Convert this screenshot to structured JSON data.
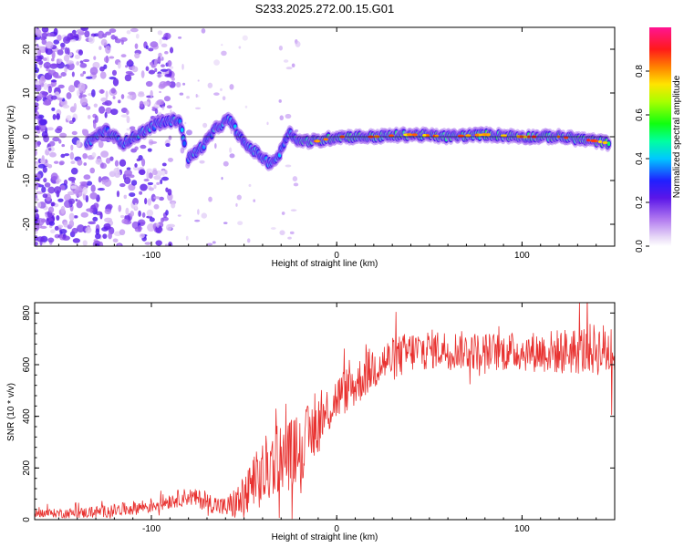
{
  "figure": {
    "title": "S233.2025.272.00.15.G01"
  },
  "chart_data": [
    {
      "type": "heatmap",
      "title": "",
      "xlabel": "Height of straight line (km)",
      "ylabel": "Frequency (Hz)",
      "xlim": [
        -163,
        150
      ],
      "ylim": [
        -25,
        25
      ],
      "xticks": [
        -100,
        0,
        100
      ],
      "xtick_labels": [
        "-100",
        "0",
        "100"
      ],
      "yticks": [
        -20,
        -10,
        0,
        10,
        20
      ],
      "ytick_labels": [
        "-20",
        "-10",
        "0",
        "10",
        "20"
      ],
      "colorbar": {
        "label": "Normalized spectral amplitude",
        "range": [
          0,
          1
        ],
        "ticks": [
          0.0,
          0.2,
          0.4,
          0.6,
          0.8
        ],
        "tick_labels": [
          "0.0",
          "0.2",
          "0.4",
          "0.6",
          "0.8"
        ]
      },
      "ridge": {
        "x": [
          -135,
          -125,
          -115,
          -105,
          -97,
          -85,
          -80,
          -72,
          -65,
          -58,
          -50,
          -42,
          -37,
          -32,
          -26,
          -20,
          -10,
          0,
          20,
          40,
          60,
          80,
          100,
          120,
          140,
          147
        ],
        "freq": [
          -1.5,
          1.5,
          -1.5,
          1,
          3,
          4,
          -5,
          -2,
          2,
          4,
          -1.5,
          -4,
          -6,
          -5,
          1,
          -1,
          -1,
          0,
          0,
          0.5,
          0,
          0.5,
          0,
          0,
          -1,
          -1.5
        ]
      }
    },
    {
      "type": "line",
      "title": "",
      "xlabel": "Height of straight line (km)",
      "ylabel": "SNR (10 * v/v)",
      "xlim": [
        -163,
        150
      ],
      "ylim": [
        0,
        840
      ],
      "xticks": [
        -100,
        0,
        100
      ],
      "xtick_labels": [
        "-100",
        "0",
        "100"
      ],
      "yticks": [
        0,
        200,
        400,
        600,
        800
      ],
      "ytick_labels": [
        "0",
        "200",
        "400",
        "600",
        "800"
      ],
      "color": "#e8312f",
      "trend": {
        "x": [
          -163,
          -140,
          -120,
          -100,
          -90,
          -80,
          -70,
          -60,
          -50,
          -45,
          -40,
          -35,
          -30,
          -25,
          -20,
          -15,
          -10,
          -5,
          0,
          5,
          10,
          15,
          20,
          25,
          30,
          40,
          50,
          60,
          80,
          100,
          120,
          140,
          150
        ],
        "y": [
          25,
          25,
          35,
          55,
          75,
          90,
          70,
          45,
          80,
          130,
          170,
          220,
          260,
          250,
          280,
          320,
          370,
          420,
          470,
          500,
          520,
          560,
          590,
          610,
          620,
          650,
          660,
          660,
          650,
          650,
          650,
          660,
          650
        ]
      },
      "noise_amplitude": {
        "x": [
          -163,
          -100,
          -60,
          -40,
          -20,
          0,
          20,
          60,
          100,
          150
        ],
        "amp": [
          15,
          30,
          40,
          140,
          140,
          90,
          90,
          75,
          75,
          110
        ]
      }
    }
  ]
}
